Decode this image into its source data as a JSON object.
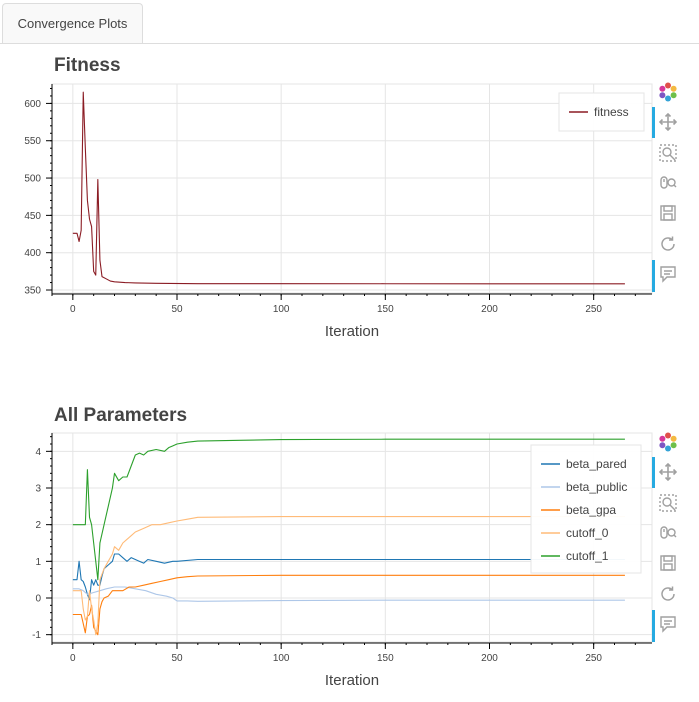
{
  "tabs": [
    {
      "label": "Convergence Plots"
    }
  ],
  "panels": [
    {
      "title": "Fitness",
      "x_label": "Iteration"
    },
    {
      "title": "All Parameters",
      "x_label": "Iteration"
    }
  ],
  "toolbar": {
    "tools": [
      "bokeh-logo-icon",
      "pan-icon",
      "box-zoom-icon",
      "wheel-zoom-icon",
      "save-icon",
      "reset-icon",
      "hover-icon"
    ]
  },
  "chart_data": [
    {
      "type": "line",
      "title": "Fitness",
      "xlabel": "Iteration",
      "ylabel": "",
      "xlim": [
        -10,
        278
      ],
      "ylim": [
        346,
        626
      ],
      "x_ticks": [
        0,
        50,
        100,
        150,
        200,
        250
      ],
      "y_ticks": [
        350,
        400,
        450,
        500,
        550,
        600
      ],
      "grid": true,
      "legend_position": "top-right",
      "series": [
        {
          "name": "fitness",
          "color": "#8b1c24",
          "points": [
            [
              0,
              426
            ],
            [
              2,
              426
            ],
            [
              3,
              415
            ],
            [
              4,
              430
            ],
            [
              5,
              615
            ],
            [
              6,
              540
            ],
            [
              7,
              470
            ],
            [
              8,
              445
            ],
            [
              9,
              435
            ],
            [
              10,
              375
            ],
            [
              11,
              370
            ],
            [
              12,
              498
            ],
            [
              13,
              390
            ],
            [
              14,
              368
            ],
            [
              16,
              365
            ],
            [
              18,
              362
            ],
            [
              20,
              361
            ],
            [
              25,
              360
            ],
            [
              30,
              359.5
            ],
            [
              40,
              359
            ],
            [
              60,
              358.5
            ],
            [
              100,
              358.5
            ],
            [
              150,
              358.4
            ],
            [
              200,
              358.3
            ],
            [
              265,
              358.3
            ]
          ]
        }
      ]
    },
    {
      "type": "line",
      "title": "All Parameters",
      "xlabel": "Iteration",
      "ylabel": "",
      "xlim": [
        -10,
        278
      ],
      "ylim": [
        -1.2,
        4.5
      ],
      "x_ticks": [
        0,
        50,
        100,
        150,
        200,
        250
      ],
      "y_ticks": [
        -1,
        0,
        1,
        2,
        3,
        4
      ],
      "grid": true,
      "legend_position": "top-right",
      "series": [
        {
          "name": "beta_pared",
          "color": "#1f77b4",
          "points": [
            [
              0,
              0.5
            ],
            [
              2,
              0.5
            ],
            [
              3,
              1.0
            ],
            [
              4,
              0.5
            ],
            [
              5,
              0.45
            ],
            [
              6,
              0.3
            ],
            [
              7,
              0.1
            ],
            [
              8,
              -0.05
            ],
            [
              9,
              0.5
            ],
            [
              10,
              0.35
            ],
            [
              11,
              0.5
            ],
            [
              12,
              0.35
            ],
            [
              13,
              0.35
            ],
            [
              14,
              0.6
            ],
            [
              15,
              0.8
            ],
            [
              17,
              0.9
            ],
            [
              19,
              1.0
            ],
            [
              20,
              1.2
            ],
            [
              22,
              1.2
            ],
            [
              24,
              1.1
            ],
            [
              26,
              1.0
            ],
            [
              28,
              1.1
            ],
            [
              30,
              1.05
            ],
            [
              32,
              1.0
            ],
            [
              34,
              0.95
            ],
            [
              36,
              1.05
            ],
            [
              40,
              1.0
            ],
            [
              44,
              0.95
            ],
            [
              48,
              1.0
            ],
            [
              50,
              1.0
            ],
            [
              60,
              1.05
            ],
            [
              100,
              1.05
            ],
            [
              150,
              1.05
            ],
            [
              200,
              1.05
            ],
            [
              265,
              1.05
            ]
          ]
        },
        {
          "name": "beta_public",
          "color": "#aec7e8",
          "points": [
            [
              0,
              0.25
            ],
            [
              3,
              0.25
            ],
            [
              5,
              0.2
            ],
            [
              7,
              0.1
            ],
            [
              10,
              0.15
            ],
            [
              13,
              0.2
            ],
            [
              16,
              0.25
            ],
            [
              20,
              0.3
            ],
            [
              25,
              0.3
            ],
            [
              30,
              0.25
            ],
            [
              35,
              0.2
            ],
            [
              40,
              0.1
            ],
            [
              45,
              0.05
            ],
            [
              48,
              0.0
            ],
            [
              50,
              -0.08
            ],
            [
              55,
              -0.08
            ],
            [
              60,
              -0.09
            ],
            [
              100,
              -0.07
            ],
            [
              150,
              -0.06
            ],
            [
              200,
              -0.06
            ],
            [
              265,
              -0.06
            ]
          ]
        },
        {
          "name": "beta_gpa",
          "color": "#ff7f0e",
          "points": [
            [
              0,
              -0.45
            ],
            [
              4,
              -0.45
            ],
            [
              5,
              -0.7
            ],
            [
              6,
              -0.95
            ],
            [
              7,
              -0.5
            ],
            [
              8,
              -0.45
            ],
            [
              9,
              -0.2
            ],
            [
              10,
              -0.8
            ],
            [
              11,
              -0.9
            ],
            [
              12,
              -1.0
            ],
            [
              13,
              -0.3
            ],
            [
              14,
              -0.1
            ],
            [
              15,
              0.0
            ],
            [
              17,
              0.05
            ],
            [
              19,
              0.2
            ],
            [
              21,
              0.2
            ],
            [
              24,
              0.2
            ],
            [
              27,
              0.3
            ],
            [
              30,
              0.3
            ],
            [
              34,
              0.35
            ],
            [
              38,
              0.4
            ],
            [
              42,
              0.45
            ],
            [
              46,
              0.5
            ],
            [
              50,
              0.55
            ],
            [
              55,
              0.58
            ],
            [
              60,
              0.6
            ],
            [
              100,
              0.62
            ],
            [
              150,
              0.62
            ],
            [
              200,
              0.62
            ],
            [
              265,
              0.62
            ]
          ]
        },
        {
          "name": "cutoff_0",
          "color": "#ffbb78",
          "points": [
            [
              0,
              0.2
            ],
            [
              4,
              0.2
            ],
            [
              5,
              -0.3
            ],
            [
              6,
              -0.6
            ],
            [
              7,
              -0.5
            ],
            [
              8,
              0.2
            ],
            [
              9,
              -0.3
            ],
            [
              10,
              -0.6
            ],
            [
              11,
              -1.0
            ],
            [
              12,
              -0.7
            ],
            [
              13,
              0.5
            ],
            [
              15,
              0.8
            ],
            [
              17,
              1.0
            ],
            [
              19,
              1.2
            ],
            [
              20,
              1.4
            ],
            [
              22,
              1.3
            ],
            [
              24,
              1.5
            ],
            [
              26,
              1.6
            ],
            [
              28,
              1.7
            ],
            [
              30,
              1.8
            ],
            [
              34,
              1.9
            ],
            [
              38,
              2.0
            ],
            [
              42,
              2.0
            ],
            [
              46,
              2.05
            ],
            [
              50,
              2.1
            ],
            [
              55,
              2.15
            ],
            [
              60,
              2.2
            ],
            [
              100,
              2.22
            ],
            [
              150,
              2.22
            ],
            [
              200,
              2.22
            ],
            [
              265,
              2.22
            ]
          ]
        },
        {
          "name": "cutoff_1",
          "color": "#2ca02c",
          "points": [
            [
              0,
              2.0
            ],
            [
              6,
              2.0
            ],
            [
              7,
              3.5
            ],
            [
              8,
              2.2
            ],
            [
              9,
              2.0
            ],
            [
              10,
              1.5
            ],
            [
              11,
              1.0
            ],
            [
              12,
              0.5
            ],
            [
              13,
              1.5
            ],
            [
              15,
              2.0
            ],
            [
              17,
              2.5
            ],
            [
              19,
              3.0
            ],
            [
              20,
              3.4
            ],
            [
              22,
              3.2
            ],
            [
              24,
              3.3
            ],
            [
              26,
              3.3
            ],
            [
              28,
              3.6
            ],
            [
              30,
              3.9
            ],
            [
              32,
              3.95
            ],
            [
              34,
              3.9
            ],
            [
              36,
              4.0
            ],
            [
              40,
              4.05
            ],
            [
              44,
              4.0
            ],
            [
              46,
              4.1
            ],
            [
              48,
              4.15
            ],
            [
              50,
              4.2
            ],
            [
              55,
              4.25
            ],
            [
              60,
              4.28
            ],
            [
              80,
              4.3
            ],
            [
              100,
              4.32
            ],
            [
              150,
              4.33
            ],
            [
              200,
              4.33
            ],
            [
              265,
              4.33
            ]
          ]
        }
      ]
    }
  ]
}
